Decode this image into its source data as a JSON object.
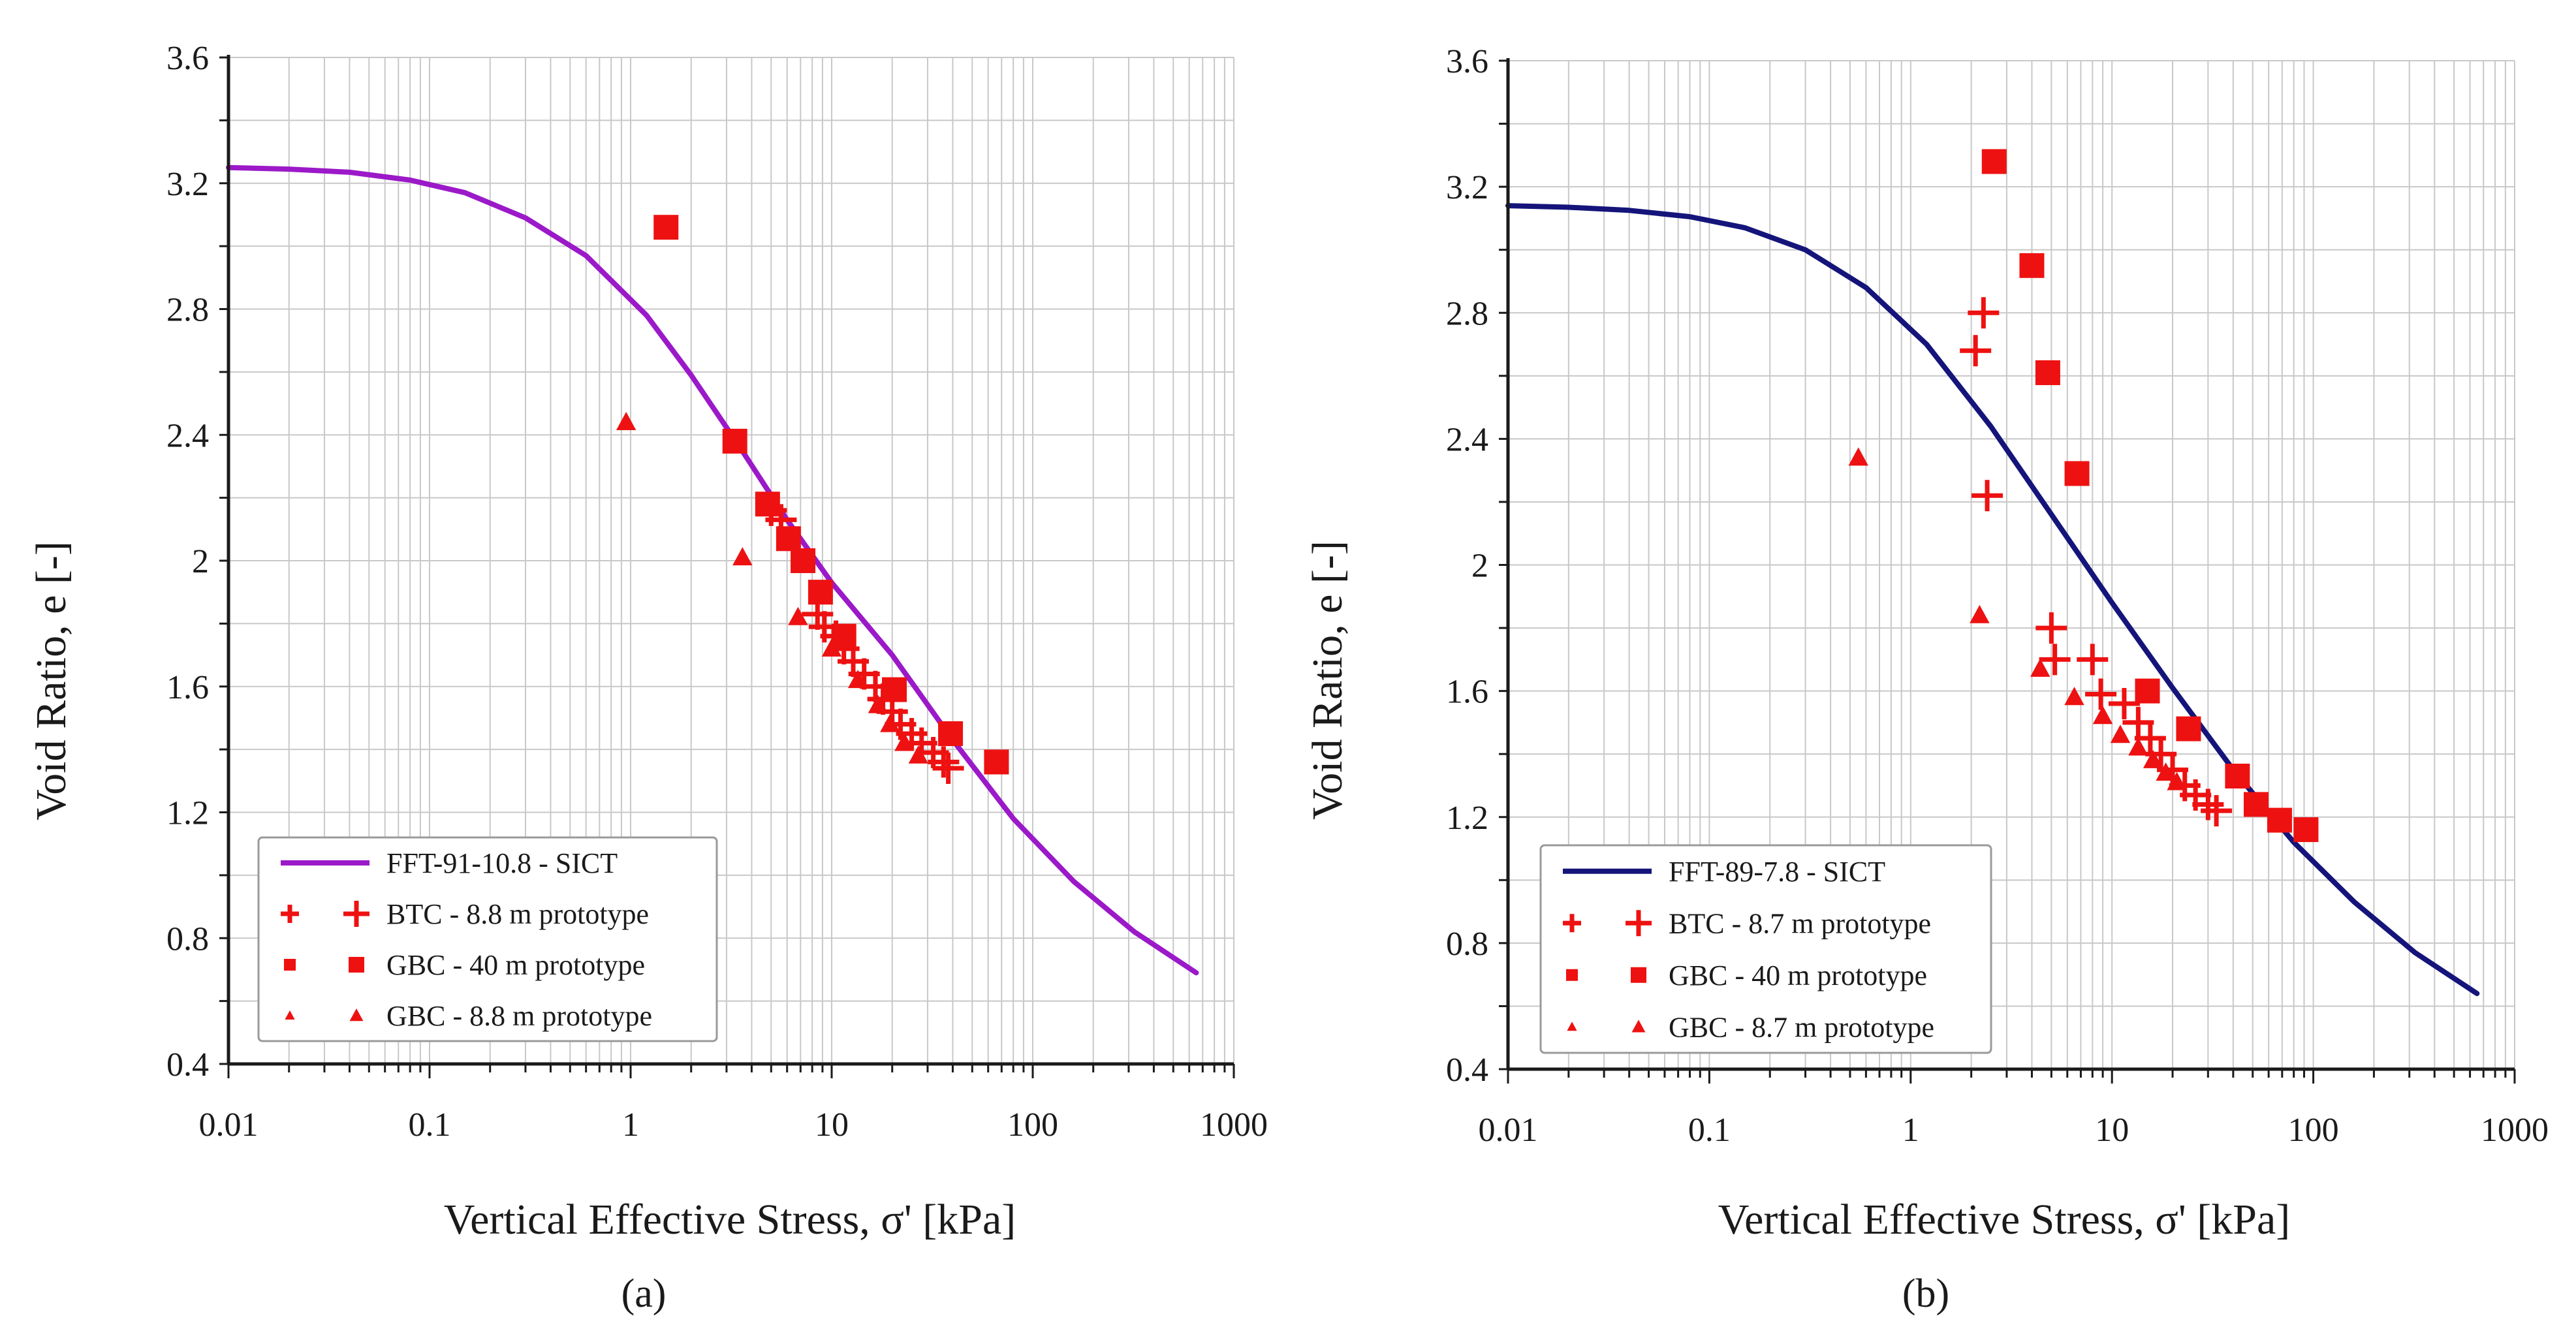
{
  "chart_data": [
    {
      "type": "scatter",
      "panel_label": "(a)",
      "xlabel": "Vertical Effective Stress, σ' [kPa]",
      "ylabel": "Void Ratio, e [-]",
      "xscale": "log",
      "xlim": [
        0.01,
        1000
      ],
      "ylim": [
        0.4,
        3.6
      ],
      "x_tick_labels": [
        "0.01",
        "0.1",
        "1",
        "10",
        "100",
        "1000"
      ],
      "x_ticks": [
        0.01,
        0.1,
        1,
        10,
        100,
        1000
      ],
      "y_tick_labels": [
        "0.4",
        "0.8",
        "1.2",
        "1.6",
        "2",
        "2.4",
        "2.8",
        "3.2",
        "3.6"
      ],
      "y_ticks": [
        0.4,
        0.8,
        1.2,
        1.6,
        2.0,
        2.4,
        2.8,
        3.2,
        3.6
      ],
      "grid": true,
      "legend_position": "bottom-left",
      "series": [
        {
          "name": "FFT-91-10.8 - SICT",
          "kind": "line",
          "color": "#9b19c8",
          "x": [
            0.01,
            0.02,
            0.04,
            0.08,
            0.15,
            0.3,
            0.6,
            1.2,
            2.0,
            3.5,
            6,
            10,
            20,
            40,
            80,
            160,
            320,
            650
          ],
          "y": [
            3.25,
            3.245,
            3.235,
            3.21,
            3.17,
            3.09,
            2.97,
            2.78,
            2.59,
            2.36,
            2.13,
            1.93,
            1.7,
            1.43,
            1.18,
            0.98,
            0.82,
            0.69
          ]
        },
        {
          "name": "BTC - 8.8 m prototype",
          "kind": "marker",
          "marker": "plus",
          "color": "#ee1111",
          "x": [
            5.0,
            5.6,
            8.5,
            9.2,
            10.5,
            11.5,
            12.8,
            14.5,
            16.5,
            18,
            20,
            22,
            25,
            28,
            32,
            36,
            38
          ],
          "y": [
            2.16,
            2.13,
            1.83,
            1.79,
            1.76,
            1.72,
            1.68,
            1.64,
            1.6,
            1.56,
            1.52,
            1.48,
            1.45,
            1.42,
            1.39,
            1.36,
            1.34
          ]
        },
        {
          "name": "GBC - 40 m prototype",
          "kind": "marker",
          "marker": "square",
          "color": "#ee1111",
          "x": [
            1.5,
            3.3,
            4.8,
            6.1,
            7.2,
            8.8,
            11.5,
            20.5,
            39,
            66
          ],
          "y": [
            3.06,
            2.38,
            2.18,
            2.07,
            2.0,
            1.9,
            1.76,
            1.59,
            1.45,
            1.36
          ]
        },
        {
          "name": "GBC - 8.8 m prototype",
          "kind": "marker",
          "marker": "triangle",
          "color": "#ee1111",
          "x": [
            0.95,
            3.6,
            6.8,
            10,
            13.5,
            17,
            19.5,
            23,
            27
          ],
          "y": [
            2.44,
            2.01,
            1.82,
            1.72,
            1.62,
            1.54,
            1.48,
            1.42,
            1.38
          ]
        }
      ]
    },
    {
      "type": "scatter",
      "panel_label": "(b)",
      "xlabel": "Vertical Effective Stress, σ' [kPa]",
      "ylabel": "Void Ratio, e [-]",
      "xscale": "log",
      "xlim": [
        0.01,
        1000
      ],
      "ylim": [
        0.4,
        3.6
      ],
      "x_tick_labels": [
        "0.01",
        "0.1",
        "1",
        "10",
        "100",
        "1000"
      ],
      "x_ticks": [
        0.01,
        0.1,
        1,
        10,
        100,
        1000
      ],
      "y_tick_labels": [
        "0.4",
        "0.8",
        "1.2",
        "1.6",
        "2",
        "2.4",
        "2.8",
        "3.2",
        "3.6"
      ],
      "y_ticks": [
        0.4,
        0.8,
        1.2,
        1.6,
        2.0,
        2.4,
        2.8,
        3.2,
        3.6
      ],
      "grid": true,
      "legend_position": "bottom-left",
      "series": [
        {
          "name": "FFT-89-7.8 - SICT",
          "kind": "line",
          "color": "#14147a",
          "x": [
            0.01,
            0.02,
            0.04,
            0.08,
            0.15,
            0.3,
            0.6,
            1.2,
            2.5,
            5,
            10,
            20,
            40,
            80,
            160,
            320,
            650
          ],
          "y": [
            3.14,
            3.135,
            3.125,
            3.105,
            3.07,
            3.0,
            2.88,
            2.7,
            2.44,
            2.16,
            1.88,
            1.61,
            1.35,
            1.12,
            0.93,
            0.77,
            0.64
          ]
        },
        {
          "name": "BTC - 8.7 m prototype",
          "kind": "marker",
          "marker": "plus",
          "color": "#ee1111",
          "x": [
            2.1,
            2.3,
            2.4,
            5.0,
            5.2,
            8.0,
            8.8,
            11.5,
            13.5,
            15.5,
            17.5,
            20,
            23,
            26,
            30,
            33
          ],
          "y": [
            2.68,
            2.8,
            2.22,
            1.8,
            1.7,
            1.7,
            1.59,
            1.56,
            1.5,
            1.45,
            1.4,
            1.35,
            1.3,
            1.27,
            1.24,
            1.22
          ]
        },
        {
          "name": "GBC - 40 m prototype",
          "kind": "marker",
          "marker": "square",
          "color": "#ee1111",
          "x": [
            2.6,
            4.0,
            4.8,
            6.7,
            15,
            24,
            42,
            52,
            68,
            92
          ],
          "y": [
            3.28,
            2.95,
            2.61,
            2.29,
            1.6,
            1.48,
            1.33,
            1.24,
            1.19,
            1.16
          ]
        },
        {
          "name": "GBC - 8.7 m prototype",
          "kind": "marker",
          "marker": "triangle",
          "color": "#ee1111",
          "x": [
            0.55,
            2.2,
            4.4,
            6.5,
            9.0,
            11,
            13.5,
            16,
            18.5,
            21
          ],
          "y": [
            2.34,
            1.84,
            1.67,
            1.58,
            1.52,
            1.46,
            1.42,
            1.38,
            1.34,
            1.31
          ]
        }
      ]
    }
  ]
}
